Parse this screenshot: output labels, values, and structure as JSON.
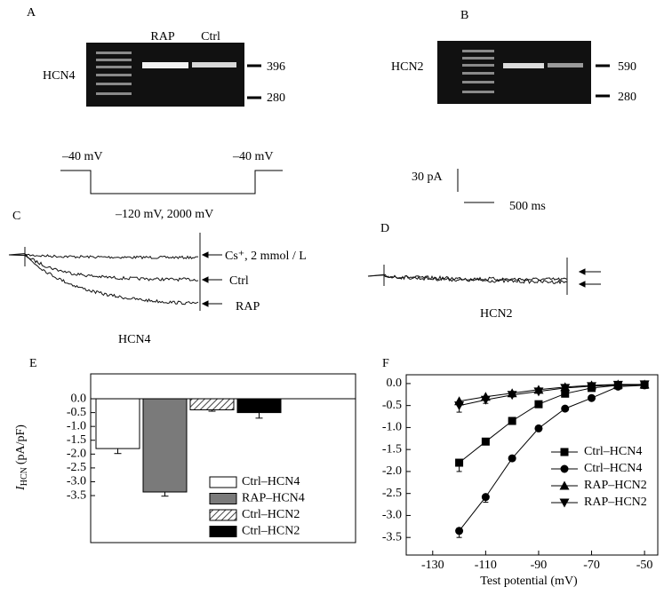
{
  "figure": {
    "panel_a": {
      "label": "A",
      "gene": "HCN4",
      "lanes": [
        "RAP",
        "Ctrl"
      ],
      "markers": [
        "396",
        "280"
      ]
    },
    "panel_b": {
      "label": "B",
      "gene": "HCN2",
      "markers": [
        "590",
        "280"
      ]
    },
    "protocol": {
      "start": "–40 mV",
      "end": "–40 mV",
      "step": "–120 mV, 2000 mV"
    },
    "scale_bar": {
      "current": "30 pA",
      "time": "500 ms"
    },
    "panel_c": {
      "label": "C",
      "traces": [
        "Cs⁺, 2 mmol / L",
        "Ctrl",
        "RAP"
      ],
      "caption": "HCN4"
    },
    "panel_d": {
      "label": "D",
      "caption": "HCN2"
    }
  },
  "chart_data": [
    {
      "type": "bar",
      "label": "E",
      "y_label": {
        "symbol": "I",
        "subscript": "HCN",
        "unit": "(pA/pF)"
      },
      "ylim": [
        -5.2,
        0.9
      ],
      "yticks": [
        {
          "value": 0,
          "label": "0.0"
        },
        -0.5,
        {
          "value": -1,
          "label": "-1.0"
        },
        -1.5,
        {
          "value": -2,
          "label": "-2.0"
        },
        -2.5,
        {
          "value": -3,
          "label": "-3.0"
        },
        -3.5
      ],
      "series": [
        {
          "name": "Ctrl–HCN4",
          "color": "#ffffff",
          "values": [
            -1.8
          ],
          "errors": [
            0.18
          ]
        },
        {
          "name": "RAP–HCN4",
          "color": "#7a7a7a",
          "values": [
            -3.37
          ],
          "errors": [
            0.15
          ]
        },
        {
          "name": "Ctrl–HCN2",
          "color": "#ffffff",
          "pattern": "hatched",
          "values": [
            -0.4
          ],
          "errors": [
            0.05
          ]
        },
        {
          "name": "Ctrl–HCN2",
          "color": "#000000",
          "values": [
            -0.5
          ],
          "errors": [
            0.2
          ]
        }
      ],
      "legend": "lower right"
    },
    {
      "type": "line",
      "label": "F",
      "x_label": "Test potential (mV)",
      "x": [
        -120,
        -110,
        -100,
        -90,
        -80,
        -70,
        -60,
        -50
      ],
      "xlim": [
        -140,
        -45
      ],
      "xticks": [
        -130,
        -110,
        -90,
        -70,
        -50
      ],
      "ylim": [
        -3.9,
        0.2
      ],
      "yticks": [
        {
          "value": 0,
          "label": "0.0"
        },
        -0.5,
        {
          "value": -1,
          "label": "-1.0"
        },
        -1.5,
        {
          "value": -2,
          "label": "-2.0"
        },
        -2.5,
        {
          "value": -3,
          "label": "-3.0"
        },
        -3.5
      ],
      "series": [
        {
          "name": "Ctrl–HCN4",
          "marker": "square",
          "color": "#000000",
          "values": [
            -1.8,
            -1.32,
            -0.85,
            -0.47,
            -0.23,
            -0.1,
            -0.04,
            -0.03
          ],
          "errors": [
            0.2,
            0.07,
            0.04,
            0.03,
            0.02,
            0.02,
            0.02,
            0.02
          ]
        },
        {
          "name": "Ctrl–HCN4",
          "marker": "circle",
          "color": "#000000",
          "values": [
            -3.35,
            -2.58,
            -1.7,
            -1.02,
            -0.57,
            -0.33,
            -0.07,
            -0.04
          ],
          "errors": [
            0.15,
            0.12,
            0.06,
            0.04,
            0.03,
            0.02,
            0.02,
            0.02
          ]
        },
        {
          "name": "RAP–HCN2",
          "marker": "triangle-up",
          "color": "#000000",
          "values": [
            -0.4,
            -0.3,
            -0.22,
            -0.14,
            -0.08,
            -0.04,
            -0.02,
            -0.02
          ],
          "errors": [
            0.1,
            0.05,
            0.03,
            0.02,
            0.02,
            0.02,
            0.02,
            0.02
          ]
        },
        {
          "name": "RAP–HCN2",
          "marker": "triangle-down",
          "color": "#000000",
          "values": [
            -0.5,
            -0.37,
            -0.26,
            -0.18,
            -0.1,
            -0.06,
            -0.03,
            -0.02
          ],
          "errors": [
            0.15,
            0.08,
            0.04,
            0.03,
            0.02,
            0.02,
            0.02,
            0.02
          ]
        }
      ],
      "legend": "center right"
    }
  ]
}
